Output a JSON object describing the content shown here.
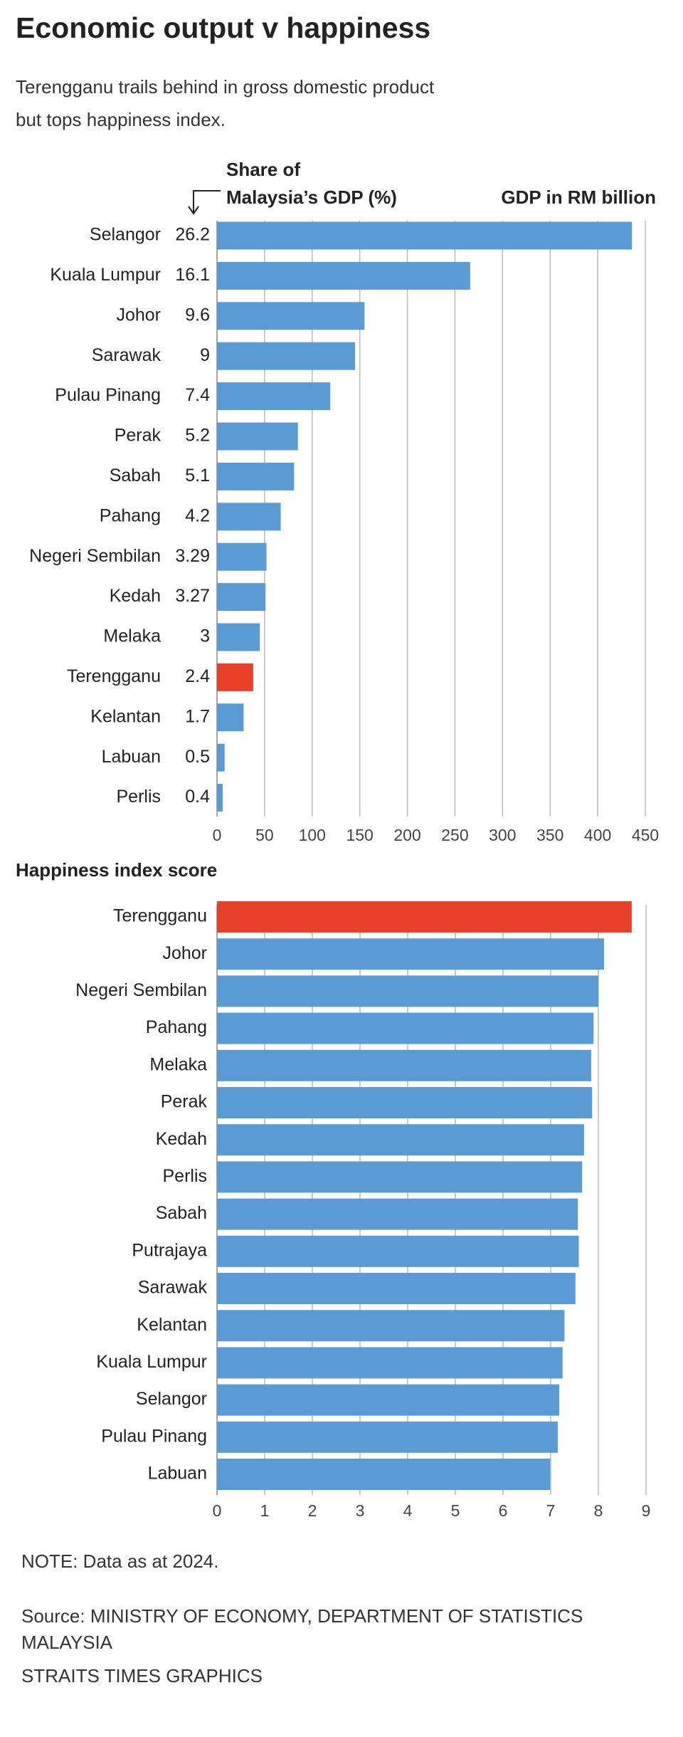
{
  "header": {
    "title": "Economic output v happiness",
    "subtitle": [
      "Terengganu trails behind in gross domestic product",
      "but tops happiness index."
    ]
  },
  "chart_data": [
    {
      "type": "bar",
      "orientation": "horizontal",
      "share_label": [
        "Share of",
        "Malaysia’s GDP (%)"
      ],
      "value_axis_label": "GDP in RM billion",
      "categories": [
        "Selangor",
        "Kuala Lumpur",
        "Johor",
        "Sarawak",
        "Pulau Pinang",
        "Perak",
        "Sabah",
        "Pahang",
        "Negeri Sembilan",
        "Kedah",
        "Melaka",
        "Terengganu",
        "Kelantan",
        "Labuan",
        "Perlis"
      ],
      "shares": [
        26.2,
        16.1,
        9.6,
        9,
        7.4,
        5.2,
        5.1,
        4.2,
        3.29,
        3.27,
        3,
        2.4,
        1.7,
        0.5,
        0.4
      ],
      "values": [
        436,
        266,
        155,
        145,
        119,
        85,
        81,
        67,
        52,
        51,
        45,
        38,
        28,
        8,
        6
      ],
      "colors": [
        "#5b9bd5",
        "#5b9bd5",
        "#5b9bd5",
        "#5b9bd5",
        "#5b9bd5",
        "#5b9bd5",
        "#5b9bd5",
        "#5b9bd5",
        "#5b9bd5",
        "#5b9bd5",
        "#5b9bd5",
        "#e8412a",
        "#5b9bd5",
        "#5b9bd5",
        "#5b9bd5"
      ],
      "xlim": [
        0,
        450
      ],
      "xticks": [
        0,
        50,
        100,
        150,
        200,
        250,
        300,
        350,
        400,
        450
      ],
      "grid": true
    },
    {
      "type": "bar",
      "orientation": "horizontal",
      "title": "Happiness index score",
      "categories": [
        "Terengganu",
        "Johor",
        "Negeri Sembilan",
        "Pahang",
        "Melaka",
        "Perak",
        "Kedah",
        "Perlis",
        "Sabah",
        "Putrajaya",
        "Sarawak",
        "Kelantan",
        "Kuala Lumpur",
        "Selangor",
        "Pulau Pinang",
        "Labuan"
      ],
      "values": [
        8.7,
        8.12,
        8.0,
        7.9,
        7.85,
        7.87,
        7.7,
        7.66,
        7.57,
        7.59,
        7.52,
        7.29,
        7.25,
        7.18,
        7.15,
        6.99
      ],
      "colors": [
        "#e8412a",
        "#5b9bd5",
        "#5b9bd5",
        "#5b9bd5",
        "#5b9bd5",
        "#5b9bd5",
        "#5b9bd5",
        "#5b9bd5",
        "#5b9bd5",
        "#5b9bd5",
        "#5b9bd5",
        "#5b9bd5",
        "#5b9bd5",
        "#5b9bd5",
        "#5b9bd5",
        "#5b9bd5"
      ],
      "xlim": [
        0,
        9
      ],
      "xticks": [
        0,
        1,
        2,
        3,
        4,
        5,
        6,
        7,
        8,
        9
      ],
      "grid": true
    }
  ],
  "footer": {
    "note": "NOTE: Data as at 2024.",
    "source": [
      "Source: MINISTRY OF ECONOMY, DEPARTMENT OF STATISTICS",
      "MALAYSIA"
    ],
    "credit": "STRAITS TIMES GRAPHICS"
  }
}
